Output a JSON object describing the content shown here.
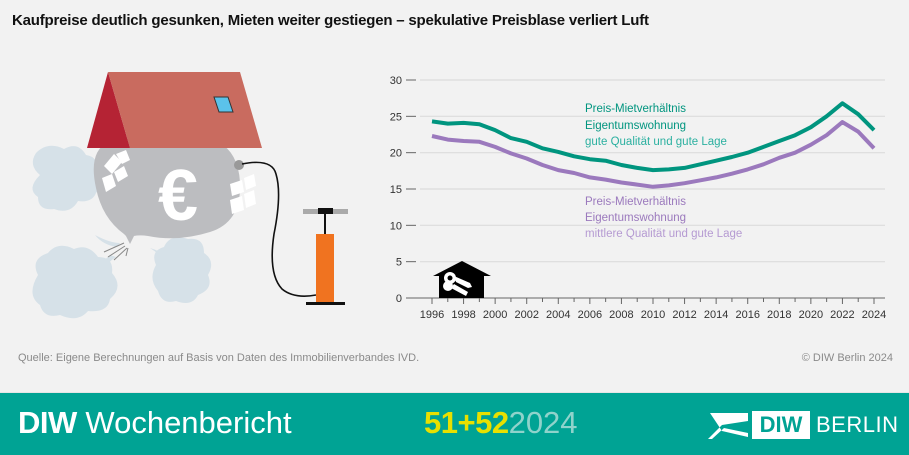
{
  "title": "Kaufpreise deutlich gesunken, Mieten weiter gestiegen – spekulative Preisblase verliert Luft",
  "source": "Quelle: Eigene Berechnungen auf Basis von Daten des Immobilienverbandes IVD.",
  "copyright": "© DIW Berlin 2024",
  "footer": {
    "brand_bold": "DIW",
    "brand_regular": "Wochenbericht",
    "issue_number": "51+52",
    "issue_year": "2024",
    "logo_box": "DIW",
    "logo_text": "BERLIN",
    "background_color": "#00a394",
    "issue_color": "#e8e000"
  },
  "chart_data": {
    "type": "line",
    "title": "Kaufpreise deutlich gesunken, Mieten weiter gestiegen – spekulative Preisblase verliert Luft",
    "xlabel": "",
    "ylabel": "",
    "ylim": [
      0,
      30
    ],
    "yticks": [
      0,
      5,
      10,
      15,
      20,
      25,
      30
    ],
    "xticks": [
      1996,
      1998,
      2000,
      2002,
      2004,
      2006,
      2008,
      2010,
      2012,
      2014,
      2016,
      2018,
      2020,
      2022,
      2024
    ],
    "grid": true,
    "x": [
      1996,
      1997,
      1998,
      1999,
      2000,
      2001,
      2002,
      2003,
      2004,
      2005,
      2006,
      2007,
      2008,
      2009,
      2010,
      2011,
      2012,
      2013,
      2014,
      2015,
      2016,
      2017,
      2018,
      2019,
      2020,
      2021,
      2022,
      2023,
      2024
    ],
    "series": [
      {
        "name": "Preis-Mietverhältnis Eigentumswohnung gute Qualität und gute Lage",
        "label_line1": "Preis-Mietverhältnis",
        "label_line2": "Eigentumswohnung",
        "label_line3": "gute Qualität und gute Lage",
        "color": "#00957f",
        "values": [
          24.3,
          24.0,
          24.1,
          23.9,
          23.1,
          22.0,
          21.5,
          20.6,
          20.1,
          19.5,
          19.1,
          18.9,
          18.3,
          17.9,
          17.6,
          17.7,
          17.9,
          18.4,
          18.9,
          19.4,
          20.0,
          20.8,
          21.6,
          22.4,
          23.5,
          25.0,
          26.8,
          25.3,
          23.1
        ]
      },
      {
        "name": "Preis-Mietverhältnis Eigentumswohnung mittlere Qualität und gute Lage",
        "label_line1": "Preis-Mietverhältnis",
        "label_line2": "Eigentumswohnung",
        "label_line3": "mittlere Qualität und gute Lage",
        "color": "#9b79bd",
        "values": [
          22.3,
          21.8,
          21.6,
          21.5,
          20.8,
          19.9,
          19.2,
          18.3,
          17.6,
          17.2,
          16.6,
          16.3,
          15.9,
          15.6,
          15.3,
          15.5,
          15.8,
          16.2,
          16.6,
          17.1,
          17.7,
          18.4,
          19.3,
          20.0,
          21.1,
          22.4,
          24.2,
          22.9,
          20.6
        ]
      }
    ],
    "legend_position": "inline annotations"
  }
}
